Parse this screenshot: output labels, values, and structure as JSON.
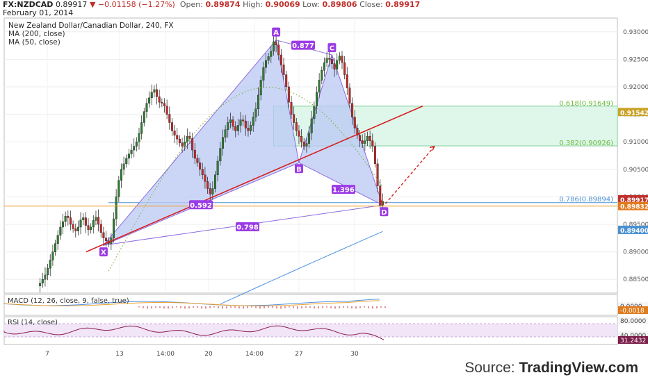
{
  "header": {
    "symbol": "FX:NZDCAD",
    "last": "0.89917",
    "arrow": "▼",
    "change": "−0.01158 (−1.27%)",
    "open_label": "Open:",
    "open": "0.89874",
    "high_label": "High:",
    "high": "0.90069",
    "low_label": "Low:",
    "low": "0.89806",
    "close_label": "Close:",
    "close": "0.89917",
    "date": "February 01, 2014"
  },
  "footer": {
    "prefix": "Source:",
    "brand": "TradingView.com"
  },
  "colors": {
    "up": "#2e7d32",
    "down": "#c62828",
    "pattern_fill": "#b9c8f4",
    "pattern_line": "#8a6be0",
    "label_bg": "#9b3be6",
    "fib_fill": "#dff6ea",
    "fib_line": "#7ccf95",
    "fib_text": "#6bbb3c",
    "fib_786": "#4a90d0",
    "trend_red": "#d62020",
    "orange_line": "#f0a030",
    "ma200": "#4a90e2",
    "ma50": "#7cb342",
    "macd_line": "#4a90e2",
    "macd_signal": "#f0a030",
    "rsi_line": "#8b1a4a"
  },
  "chart_data": {
    "type": "candlestick",
    "title": "New Zealand Dollar/Canadian Dollar, 240, FX",
    "legend": [
      "MA (200, close)",
      "MA (50, close)"
    ],
    "ylim": [
      0.8825,
      0.9325
    ],
    "y_ticks": [
      "0.93000",
      "0.92500",
      "0.92000",
      "0.91500",
      "0.91000",
      "0.90500",
      "0.90000",
      "0.89500",
      "0.89000",
      "0.88500"
    ],
    "x_ticks": [
      "7",
      "13",
      "14:00",
      "20",
      "14:00",
      "27",
      "30"
    ],
    "pattern": {
      "points": [
        {
          "name": "X",
          "price": 0.8912
        },
        {
          "name": "A",
          "price": 0.9285
        },
        {
          "name": "B",
          "price": 0.9062
        },
        {
          "name": "C",
          "price": 0.9258
        },
        {
          "name": "D",
          "price": 0.8985
        }
      ],
      "ratios": [
        "0.592",
        "0.877",
        "1.396",
        "0.798"
      ]
    },
    "fib_levels": [
      {
        "label": "0.618(0.91649)",
        "value": 0.91649
      },
      {
        "label": "0.382(0.90926)",
        "value": 0.90926
      },
      {
        "label": "0.786(0.89894)",
        "value": 0.89894
      }
    ],
    "price_tags": [
      {
        "label": "0.91542",
        "value": 0.91542,
        "color": "#c9a227"
      },
      {
        "label": "0.89917",
        "value": 0.89917,
        "color": "#c0302b"
      },
      {
        "label": "0.89832",
        "value": 0.89832,
        "color": "#e07b1f"
      },
      {
        "label": "0.89400",
        "value": 0.894,
        "color": "#4a90d0"
      }
    ],
    "close_path": [
      0.8838,
      0.8843,
      0.885,
      0.8858,
      0.887,
      0.8885,
      0.89,
      0.8915,
      0.893,
      0.8945,
      0.8955,
      0.8965,
      0.8962,
      0.895,
      0.8942,
      0.8938,
      0.8945,
      0.8958,
      0.8962,
      0.8948,
      0.894,
      0.8945,
      0.8957,
      0.8963,
      0.895,
      0.8935,
      0.8925,
      0.892,
      0.8915,
      0.8925,
      0.896,
      0.9,
      0.903,
      0.905,
      0.906,
      0.907,
      0.9078,
      0.9085,
      0.9092,
      0.91,
      0.9115,
      0.9135,
      0.9155,
      0.917,
      0.918,
      0.919,
      0.9195,
      0.9182,
      0.9172,
      0.917,
      0.9165,
      0.915,
      0.9135,
      0.912,
      0.9112,
      0.9105,
      0.9098,
      0.9092,
      0.91,
      0.911,
      0.9106,
      0.9085,
      0.907,
      0.9062,
      0.905,
      0.904,
      0.9028,
      0.9015,
      0.9005,
      0.9015,
      0.904,
      0.9065,
      0.9088,
      0.9108,
      0.9122,
      0.9135,
      0.914,
      0.9128,
      0.912,
      0.913,
      0.914,
      0.9138,
      0.9125,
      0.912,
      0.913,
      0.9145,
      0.916,
      0.9185,
      0.9212,
      0.9235,
      0.9248,
      0.9255,
      0.9265,
      0.9282,
      0.9276,
      0.9258,
      0.924,
      0.9222,
      0.92,
      0.9172,
      0.915,
      0.9135,
      0.912,
      0.911,
      0.91,
      0.9092,
      0.9097,
      0.9116,
      0.9142,
      0.9165,
      0.919,
      0.9212,
      0.923,
      0.9244,
      0.9252,
      0.925,
      0.9242,
      0.9232,
      0.9248,
      0.9256,
      0.9244,
      0.9222,
      0.9198,
      0.917,
      0.9145,
      0.9125,
      0.9112,
      0.9102,
      0.9097,
      0.9102,
      0.911,
      0.9102,
      0.9092,
      0.906,
      0.902,
      0.8985,
      0.8992
    ]
  },
  "macd": {
    "label": "MACD (12, 26, close, 9, false, true)",
    "tags": [
      {
        "label": "0.0000",
        "value": 0.0
      },
      {
        "label": "-0.0018",
        "value": -0.0018
      }
    ]
  },
  "rsi": {
    "label": "RSI (14, close)",
    "tags": [
      {
        "label": "80.0000",
        "value": 80
      },
      {
        "label": "40.0000",
        "value": 40
      },
      {
        "label": "31.2432",
        "value": 31.2432
      }
    ]
  }
}
